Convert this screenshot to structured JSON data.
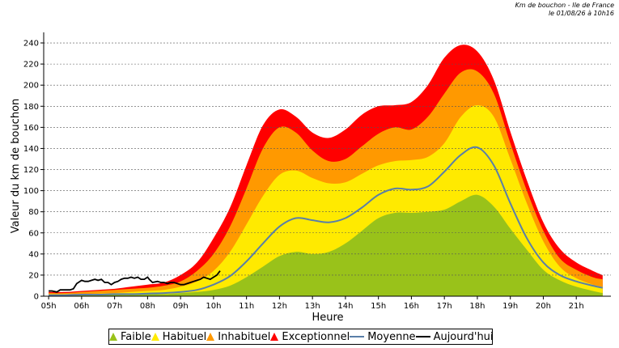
{
  "header": {
    "line1": "Km de bouchon - Ile de France",
    "line2": "le 01/08/26 à 10h16"
  },
  "chart_data": {
    "type": "area",
    "xlabel": "Heure",
    "ylabel": "Valeur du  km de bouchon",
    "x_ticks": [
      "05h",
      "06h",
      "07h",
      "08h",
      "09h",
      "10h",
      "11h",
      "12h",
      "13h",
      "14h",
      "15h",
      "16h",
      "17h",
      "18h",
      "19h",
      "20h",
      "21h"
    ],
    "x_hours": [
      5,
      5.5,
      6,
      6.5,
      7,
      7.5,
      8,
      8.5,
      9,
      9.5,
      10,
      10.5,
      11,
      11.5,
      12,
      12.5,
      13,
      13.5,
      14,
      14.5,
      15,
      15.5,
      16,
      16.5,
      17,
      17.5,
      18,
      18.5,
      19,
      19.5,
      20,
      20.5,
      21,
      21.5,
      21.8
    ],
    "ylim": [
      0,
      250
    ],
    "y_ticks": [
      0,
      20,
      40,
      60,
      80,
      100,
      120,
      140,
      160,
      180,
      200,
      220,
      240
    ],
    "grid": true,
    "legend_position": "bottom",
    "series": [
      {
        "name": "Faible",
        "kind": "area",
        "color": "#99c21a",
        "values": [
          1,
          1,
          1,
          1,
          1.5,
          1.5,
          2,
          2,
          3,
          4,
          6,
          10,
          18,
          28,
          38,
          42,
          40,
          42,
          50,
          62,
          74,
          79,
          79,
          80,
          82,
          90,
          96,
          85,
          64,
          44,
          25,
          15,
          9,
          5,
          3
        ]
      },
      {
        "name": "Habituel",
        "kind": "area",
        "color": "#ffea00",
        "values": [
          2,
          2,
          2,
          2.5,
          3,
          4,
          5,
          6,
          9,
          14,
          24,
          42,
          68,
          95,
          115,
          119,
          112,
          107,
          108,
          116,
          124,
          128,
          129,
          132,
          145,
          170,
          181,
          170,
          130,
          88,
          52,
          28,
          17,
          11,
          9
        ]
      },
      {
        "name": "Inhabituel",
        "kind": "area",
        "color": "#ff9900",
        "values": [
          3,
          3,
          4,
          5,
          6,
          7,
          8,
          10,
          14,
          24,
          40,
          66,
          102,
          140,
          160,
          155,
          138,
          128,
          130,
          142,
          154,
          160,
          158,
          170,
          192,
          212,
          213,
          192,
          145,
          100,
          62,
          36,
          25,
          18,
          16
        ]
      },
      {
        "name": "Exceptionnel",
        "kind": "area",
        "color": "#ff0000",
        "values": [
          4,
          4,
          5,
          6,
          7,
          9,
          11,
          13,
          20,
          32,
          55,
          84,
          124,
          162,
          177,
          170,
          155,
          150,
          158,
          172,
          180,
          181,
          184,
          200,
          226,
          238,
          232,
          205,
          156,
          110,
          70,
          45,
          32,
          24,
          20
        ]
      },
      {
        "name": "Moyenne",
        "kind": "line",
        "color": "#5a7fa8",
        "values": [
          1,
          1,
          1.5,
          1.5,
          2,
          2,
          2.5,
          3,
          4,
          6,
          11,
          19,
          33,
          50,
          66,
          74,
          72,
          70,
          74,
          84,
          96,
          102,
          101,
          104,
          118,
          134,
          141,
          124,
          88,
          55,
          32,
          20,
          14,
          10,
          8
        ]
      },
      {
        "name": "Aujourd'hui",
        "kind": "line",
        "color": "#000000",
        "x": [
          5,
          5.1,
          5.25,
          5.35,
          5.5,
          5.65,
          5.75,
          5.85,
          6,
          6.1,
          6.2,
          6.3,
          6.4,
          6.5,
          6.6,
          6.7,
          6.8,
          6.9,
          7,
          7.1,
          7.2,
          7.3,
          7.4,
          7.5,
          7.6,
          7.7,
          7.8,
          7.9,
          8,
          8.05,
          8.15,
          8.3,
          8.4,
          8.5,
          8.6,
          8.7,
          8.8,
          8.9,
          9,
          9.1,
          9.2,
          9.3,
          9.4,
          9.5,
          9.6,
          9.7,
          9.8,
          9.9,
          10,
          10.1,
          10.2
        ],
        "values": [
          5,
          5,
          4,
          6,
          6,
          6,
          7,
          12,
          15,
          14,
          14,
          15,
          16,
          15,
          16,
          13,
          13,
          11,
          13,
          14,
          16,
          17,
          17,
          18,
          17,
          18,
          16,
          16,
          18,
          16,
          13,
          14,
          13,
          13,
          12,
          13,
          13,
          12,
          11,
          11,
          12,
          13,
          14,
          15,
          16,
          18,
          17,
          16,
          18,
          20,
          24
        ]
      }
    ]
  }
}
